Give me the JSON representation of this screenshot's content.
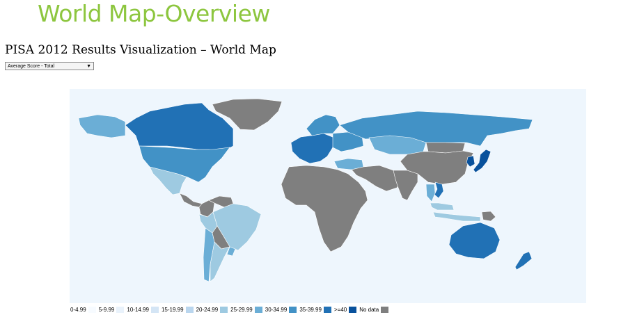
{
  "page": {
    "title": "World Map-Overview"
  },
  "viz": {
    "title": "PISA 2012 Results Visualization – World Map",
    "selector": {
      "selected": "Average Score - Total"
    }
  },
  "map": {
    "ocean_color": "#eef6fd",
    "no_data_color": "#7f7f7f",
    "regions": [
      {
        "name": "Greenland",
        "class": "No data"
      },
      {
        "name": "Canada",
        "class": "35-39.99"
      },
      {
        "name": "Alaska",
        "class": "25-29.99"
      },
      {
        "name": "United States",
        "class": "30-34.99"
      },
      {
        "name": "Mexico",
        "class": "20-24.99"
      },
      {
        "name": "Central America",
        "class": "No data"
      },
      {
        "name": "Colombia",
        "class": "No data"
      },
      {
        "name": "Venezuela",
        "class": "No data"
      },
      {
        "name": "Brazil",
        "class": "20-24.99"
      },
      {
        "name": "Peru",
        "class": "20-24.99"
      },
      {
        "name": "Bolivia",
        "class": "No data"
      },
      {
        "name": "Argentina",
        "class": "20-24.99"
      },
      {
        "name": "Chile",
        "class": "25-29.99"
      },
      {
        "name": "Uruguay",
        "class": "25-29.99"
      },
      {
        "name": "Western Europe",
        "class": "35-39.99"
      },
      {
        "name": "Scandinavia",
        "class": "30-34.99"
      },
      {
        "name": "Eastern Europe",
        "class": "30-34.99"
      },
      {
        "name": "Turkey",
        "class": "25-29.99"
      },
      {
        "name": "Russia",
        "class": "30-34.99"
      },
      {
        "name": "Kazakhstan",
        "class": "25-29.99"
      },
      {
        "name": "Africa",
        "class": "No data"
      },
      {
        "name": "Middle East",
        "class": "No data"
      },
      {
        "name": "India",
        "class": "No data"
      },
      {
        "name": "China",
        "class": "No data"
      },
      {
        "name": "Mongolia",
        "class": "No data"
      },
      {
        "name": "Japan",
        "class": ">=40"
      },
      {
        "name": "Korea",
        "class": ">=40"
      },
      {
        "name": "Vietnam",
        "class": "35-39.99"
      },
      {
        "name": "Thailand",
        "class": "25-29.99"
      },
      {
        "name": "Indonesia",
        "class": "20-24.99"
      },
      {
        "name": "Malaysia",
        "class": "20-24.99"
      },
      {
        "name": "Papua New Guinea",
        "class": "No data"
      },
      {
        "name": "Australia",
        "class": "35-39.99"
      },
      {
        "name": "New Zealand",
        "class": "35-39.99"
      }
    ]
  },
  "legend": {
    "items": [
      {
        "label": "0-4.99",
        "color": "#f7fbff"
      },
      {
        "label": "5-9.99",
        "color": "#e9f2fb"
      },
      {
        "label": "10-14.99",
        "color": "#d4e5f5"
      },
      {
        "label": "15-19.99",
        "color": "#bad6ee"
      },
      {
        "label": "20-24.99",
        "color": "#9ecae1"
      },
      {
        "label": "25-29.99",
        "color": "#6baed6"
      },
      {
        "label": "30-34.99",
        "color": "#4292c6"
      },
      {
        "label": "35-39.99",
        "color": "#2171b5"
      },
      {
        "label": ">=40",
        "color": "#08519c"
      },
      {
        "label": "No data",
        "color": "#7f7f7f"
      }
    ]
  }
}
